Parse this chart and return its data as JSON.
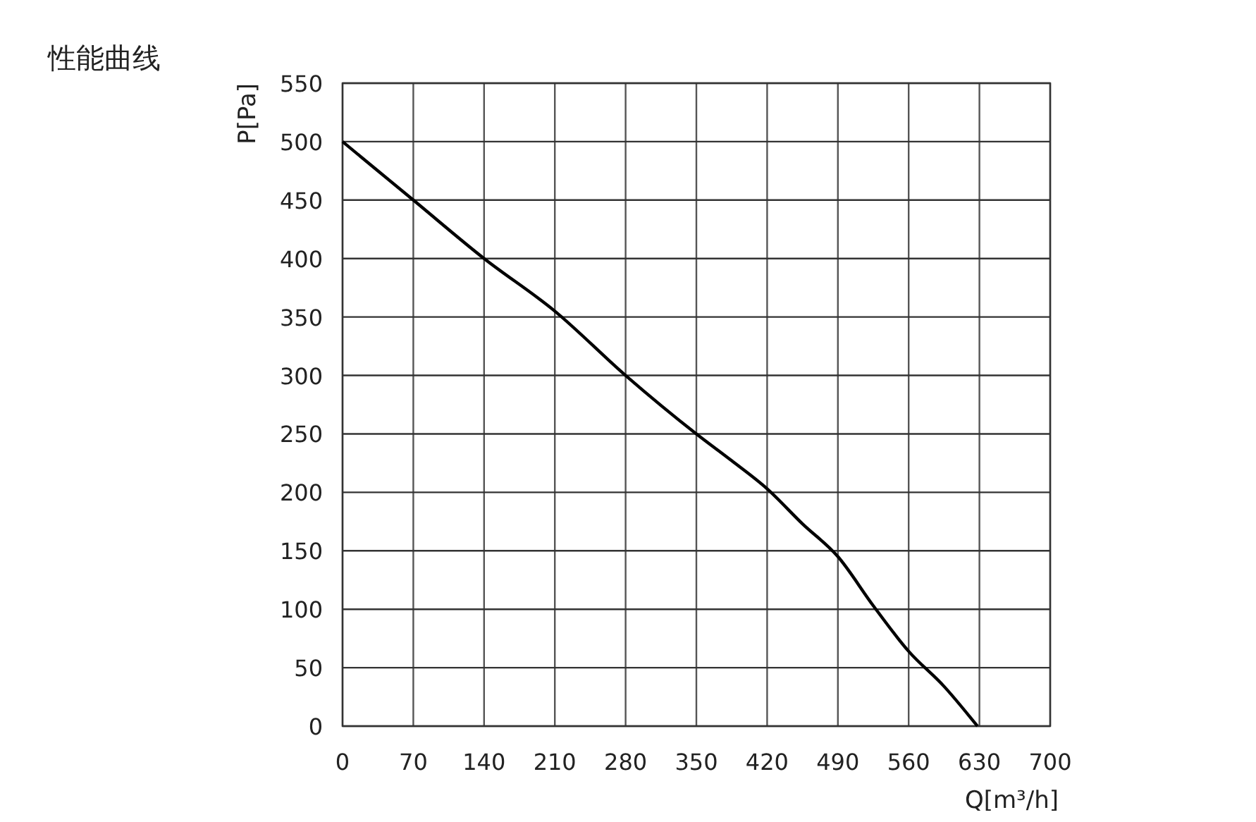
{
  "chart_data": {
    "type": "line",
    "title": "性能曲线",
    "xlabel": "Q[m³/h]",
    "ylabel": "P[Pa]",
    "x": [
      0,
      70,
      140,
      210,
      280,
      350,
      385,
      420,
      455,
      490,
      525,
      560,
      595,
      628
    ],
    "series": [
      {
        "color": "#000000",
        "values": [
          500,
          450,
          400,
          355,
          300,
          250,
          227,
          203,
          173,
          145,
          103,
          64,
          34,
          0
        ]
      }
    ],
    "xlim": [
      0,
      700
    ],
    "xticks": [
      0,
      70,
      140,
      210,
      280,
      350,
      420,
      490,
      560,
      630,
      700
    ],
    "ylim": [
      0,
      550
    ],
    "yticks": [
      0,
      50,
      100,
      150,
      200,
      250,
      300,
      350,
      400,
      450,
      500,
      550
    ],
    "grid": true,
    "marker": "none",
    "line_style": "solid"
  }
}
